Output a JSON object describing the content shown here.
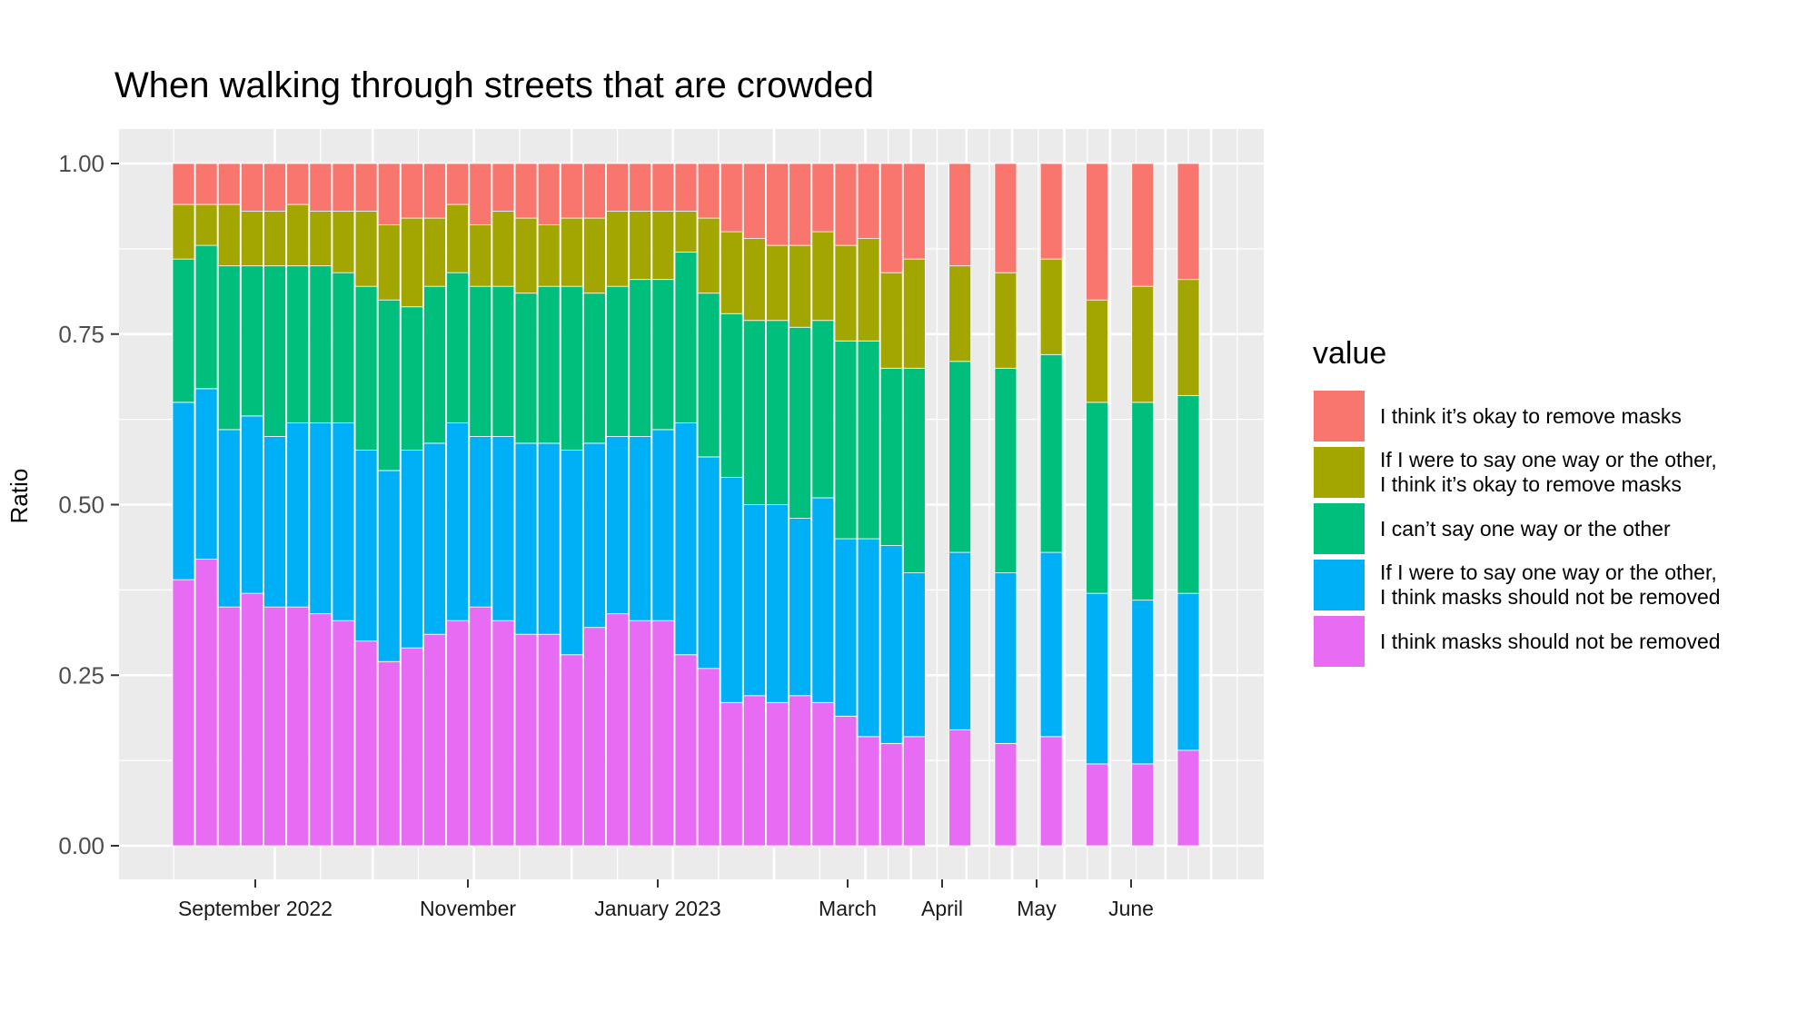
{
  "chart_data": {
    "type": "bar",
    "stacked": true,
    "title": "When walking through streets that are crowded",
    "xlabel": "",
    "ylabel": "Ratio",
    "ylim": [
      0,
      1
    ],
    "y_ticks": [
      "0.00",
      "0.25",
      "0.50",
      "0.75",
      "1.00"
    ],
    "x_tick_labels": [
      "September 2022",
      "November",
      "January 2023",
      "March",
      "April",
      "May",
      "June"
    ],
    "grid": true,
    "legend_title": "value",
    "legend_position": "right",
    "legend": [
      {
        "label": "I think it’s okay to remove masks",
        "color": "#F8766D"
      },
      {
        "label": "If I were to say one way or the other,\nI think it’s okay to remove  masks",
        "color": "#A3A500"
      },
      {
        "label": "I can’t say one way or the other",
        "color": "#00BF7D"
      },
      {
        "label": "If I were to say one way or the other,\nI think masks should not be removed",
        "color": "#00B0F6"
      },
      {
        "label": "I think masks should not be removed",
        "color": "#E76BF3"
      }
    ],
    "bars": [
      {
        "date": "2022-08-04",
        "values": [
          0.06,
          0.08,
          0.21,
          0.26,
          0.39
        ]
      },
      {
        "date": "2022-08-11",
        "values": [
          0.06,
          0.06,
          0.21,
          0.25,
          0.42
        ]
      },
      {
        "date": "2022-08-18",
        "values": [
          0.06,
          0.09,
          0.24,
          0.26,
          0.35
        ]
      },
      {
        "date": "2022-08-25",
        "values": [
          0.07,
          0.08,
          0.22,
          0.26,
          0.37
        ]
      },
      {
        "date": "2022-09-01",
        "values": [
          0.07,
          0.08,
          0.25,
          0.25,
          0.35
        ]
      },
      {
        "date": "2022-09-08",
        "values": [
          0.06,
          0.09,
          0.23,
          0.27,
          0.35
        ]
      },
      {
        "date": "2022-09-15",
        "values": [
          0.07,
          0.08,
          0.23,
          0.28,
          0.34
        ]
      },
      {
        "date": "2022-09-22",
        "values": [
          0.07,
          0.09,
          0.22,
          0.29,
          0.33
        ]
      },
      {
        "date": "2022-09-29",
        "values": [
          0.07,
          0.11,
          0.24,
          0.28,
          0.3
        ]
      },
      {
        "date": "2022-10-06",
        "values": [
          0.09,
          0.11,
          0.25,
          0.28,
          0.27
        ]
      },
      {
        "date": "2022-10-13",
        "values": [
          0.08,
          0.13,
          0.21,
          0.29,
          0.29
        ]
      },
      {
        "date": "2022-10-20",
        "values": [
          0.08,
          0.1,
          0.23,
          0.28,
          0.31
        ]
      },
      {
        "date": "2022-10-27",
        "values": [
          0.06,
          0.1,
          0.22,
          0.29,
          0.33
        ]
      },
      {
        "date": "2022-11-03",
        "values": [
          0.09,
          0.09,
          0.22,
          0.25,
          0.35
        ]
      },
      {
        "date": "2022-11-10",
        "values": [
          0.07,
          0.11,
          0.22,
          0.27,
          0.33
        ]
      },
      {
        "date": "2022-11-17",
        "values": [
          0.08,
          0.11,
          0.22,
          0.28,
          0.31
        ]
      },
      {
        "date": "2022-11-24",
        "values": [
          0.09,
          0.09,
          0.23,
          0.28,
          0.31
        ]
      },
      {
        "date": "2022-12-01",
        "values": [
          0.08,
          0.1,
          0.24,
          0.3,
          0.28
        ]
      },
      {
        "date": "2022-12-08",
        "values": [
          0.08,
          0.11,
          0.22,
          0.27,
          0.32
        ]
      },
      {
        "date": "2022-12-15",
        "values": [
          0.07,
          0.11,
          0.22,
          0.26,
          0.34
        ]
      },
      {
        "date": "2022-12-22",
        "values": [
          0.07,
          0.1,
          0.23,
          0.27,
          0.33
        ]
      },
      {
        "date": "2022-12-29",
        "values": [
          0.07,
          0.1,
          0.22,
          0.28,
          0.33
        ]
      },
      {
        "date": "2023-01-05",
        "values": [
          0.07,
          0.06,
          0.25,
          0.34,
          0.28
        ]
      },
      {
        "date": "2023-01-12",
        "values": [
          0.08,
          0.11,
          0.24,
          0.31,
          0.26
        ]
      },
      {
        "date": "2023-01-19",
        "values": [
          0.1,
          0.12,
          0.24,
          0.33,
          0.21
        ]
      },
      {
        "date": "2023-01-26",
        "values": [
          0.11,
          0.12,
          0.27,
          0.28,
          0.22
        ]
      },
      {
        "date": "2023-02-02",
        "values": [
          0.12,
          0.11,
          0.27,
          0.29,
          0.21
        ]
      },
      {
        "date": "2023-02-09",
        "values": [
          0.12,
          0.12,
          0.28,
          0.26,
          0.22
        ]
      },
      {
        "date": "2023-02-16",
        "values": [
          0.1,
          0.13,
          0.26,
          0.3,
          0.21
        ]
      },
      {
        "date": "2023-02-23",
        "values": [
          0.12,
          0.14,
          0.29,
          0.26,
          0.19
        ]
      },
      {
        "date": "2023-03-02",
        "values": [
          0.11,
          0.15,
          0.29,
          0.29,
          0.16
        ]
      },
      {
        "date": "2023-03-09",
        "values": [
          0.16,
          0.14,
          0.26,
          0.29,
          0.15
        ]
      },
      {
        "date": "2023-03-16",
        "values": [
          0.14,
          0.16,
          0.3,
          0.24,
          0.16
        ]
      },
      {
        "date": "2023-03-30",
        "values": [
          0.15,
          0.14,
          0.28,
          0.26,
          0.17
        ]
      },
      {
        "date": "2023-04-13",
        "values": [
          0.16,
          0.14,
          0.3,
          0.25,
          0.15
        ]
      },
      {
        "date": "2023-04-27",
        "values": [
          0.14,
          0.14,
          0.29,
          0.27,
          0.16
        ]
      },
      {
        "date": "2023-05-11",
        "values": [
          0.2,
          0.15,
          0.28,
          0.25,
          0.12
        ]
      },
      {
        "date": "2023-05-25",
        "values": [
          0.18,
          0.17,
          0.29,
          0.24,
          0.12
        ]
      },
      {
        "date": "2023-06-08",
        "values": [
          0.17,
          0.17,
          0.29,
          0.23,
          0.14
        ]
      }
    ]
  }
}
